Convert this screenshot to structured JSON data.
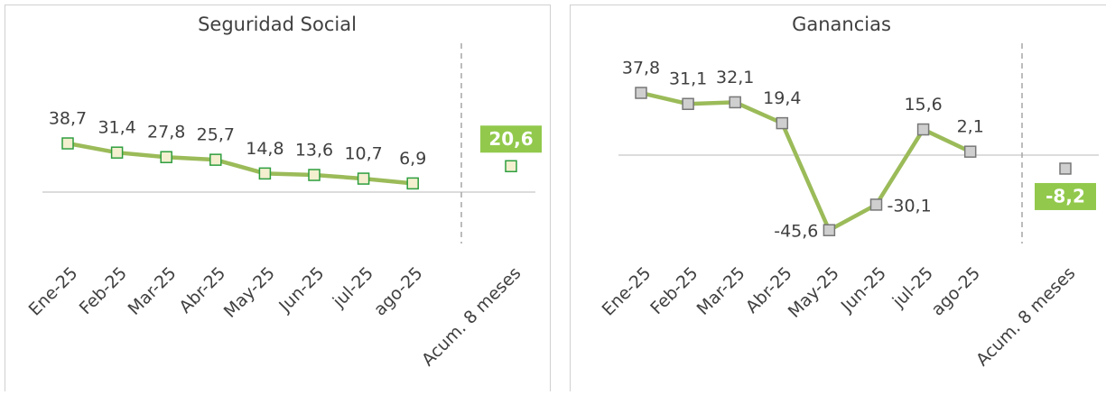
{
  "chart_data": [
    {
      "type": "line",
      "title": "Seguridad Social",
      "categories": [
        "Ene-25",
        "Feb-25",
        "Mar-25",
        "Abr-25",
        "May-25",
        "Jun-25",
        "jul-25",
        "ago-25"
      ],
      "values": [
        38.7,
        31.4,
        27.8,
        25.7,
        14.8,
        13.6,
        10.7,
        6.9
      ],
      "value_labels": [
        "38,7",
        "31,4",
        "27,8",
        "25,7",
        "14,8",
        "13,6",
        "10,7",
        "6,9"
      ],
      "total_category": "Acum. 8 meses",
      "total_value": 20.6,
      "total_label": "20,6",
      "ylim": [
        -40,
        120
      ],
      "color": "#9bbb59",
      "marker_fill": "#f3efcf",
      "marker_stroke": "#2e9e3e",
      "total_color": "#92c94c"
    },
    {
      "type": "line",
      "title": "Ganancias",
      "categories": [
        "Ene-25",
        "Feb-25",
        "Mar-25",
        "Abr-25",
        "May-25",
        "Jun-25",
        "jul-25",
        "ago-25"
      ],
      "values": [
        37.8,
        31.1,
        32.1,
        19.4,
        -45.6,
        -30.1,
        15.6,
        2.1
      ],
      "value_labels": [
        "37,8",
        "31,1",
        "32,1",
        "19,4",
        "-45,6",
        "-30,1",
        "15,6",
        "2,1"
      ],
      "total_category": "Acum. 8 meses",
      "total_value": -8.2,
      "total_label": "-8,2",
      "ylim": [
        -60,
        60
      ],
      "color": "#9bbb59",
      "marker_fill": "#cfcfcf",
      "marker_stroke": "#777777",
      "total_color": "#92c94c"
    }
  ]
}
